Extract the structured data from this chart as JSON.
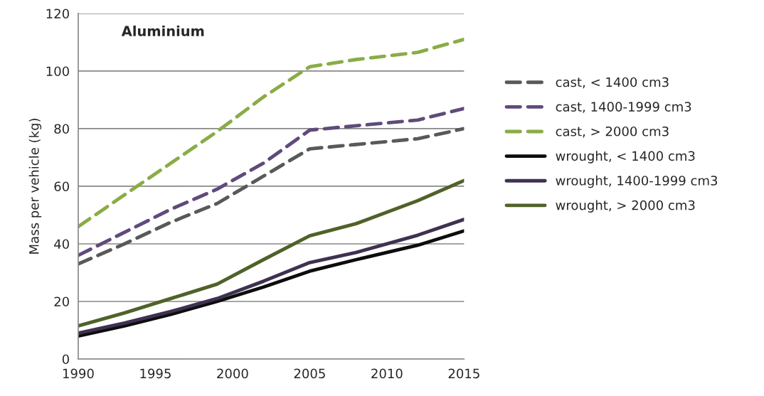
{
  "chart_data": {
    "type": "line",
    "title": "Aluminium",
    "ylabel": "Mass per vehicle (kg)",
    "x": [
      1990,
      1993,
      1996,
      1999,
      2002,
      2005,
      2008,
      2012,
      2015
    ],
    "xlim": [
      1990,
      2015
    ],
    "xticks": [
      1990,
      1995,
      2000,
      2005,
      2010,
      2015
    ],
    "ylim": [
      0,
      120
    ],
    "yticks": [
      0,
      20,
      40,
      60,
      80,
      100,
      120
    ],
    "grid": "y",
    "legend": "right",
    "marker": "none",
    "series": [
      {
        "name": "cast, < 1400 cm3",
        "color": "#595959",
        "line_style": "dashed",
        "values": [
          33,
          40,
          47.5,
          54,
          63.5,
          73,
          74.5,
          76.5,
          80
        ]
      },
      {
        "name": "cast, 1400-1999 cm3",
        "color": "#604a7b",
        "line_style": "dashed",
        "values": [
          36,
          44,
          52,
          59,
          68,
          79.5,
          81,
          83,
          87
        ]
      },
      {
        "name": "cast, > 2000 cm3",
        "color": "#8aac46",
        "line_style": "dashed",
        "values": [
          46,
          57,
          68,
          79,
          91,
          101.5,
          104,
          106.5,
          111
        ]
      },
      {
        "name": "wrought, < 1400 cm3",
        "color": "#0d0d0d",
        "line_style": "solid",
        "values": [
          8,
          11.5,
          15.5,
          20,
          25,
          30.5,
          34.5,
          39.5,
          44.5
        ]
      },
      {
        "name": "wrought, 1400-1999 cm3",
        "color": "#3f3151",
        "line_style": "solid",
        "values": [
          9,
          12.5,
          16.5,
          21,
          27,
          33.5,
          37,
          43,
          48.5
        ]
      },
      {
        "name": "wrought, > 2000 cm3",
        "color": "#4f6228",
        "line_style": "solid",
        "values": [
          11.5,
          16,
          21,
          26,
          34.5,
          42.8,
          47,
          55,
          62
        ]
      }
    ]
  }
}
